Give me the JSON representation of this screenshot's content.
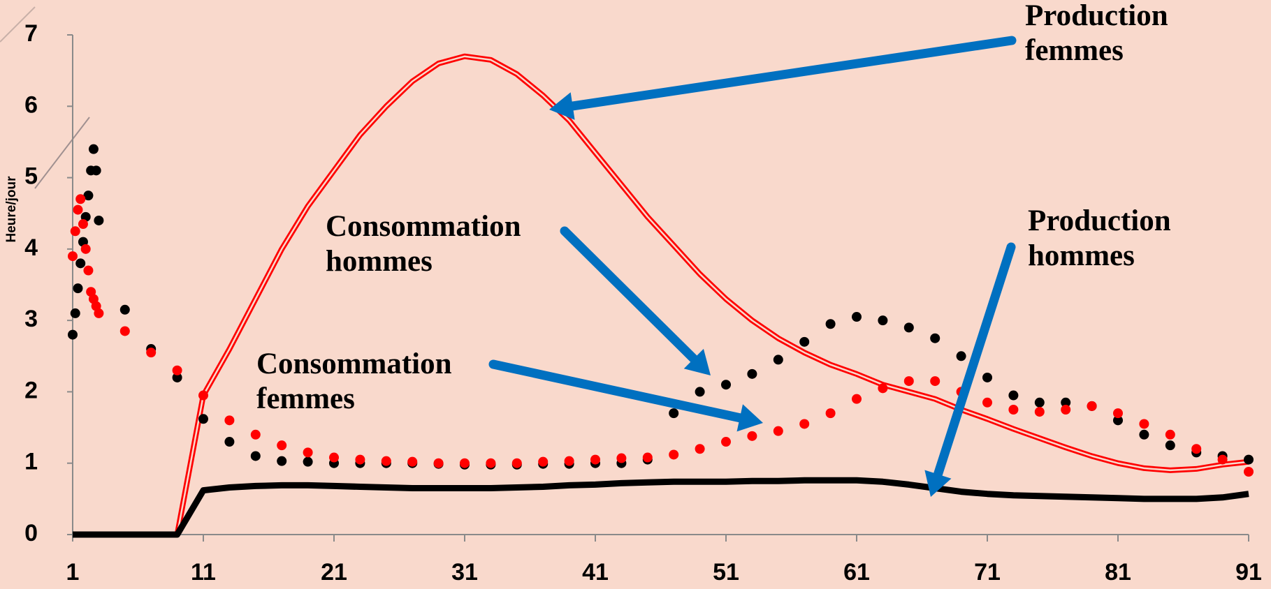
{
  "chart_data": {
    "type": "line",
    "y_label": "Heure/jour",
    "x": [
      1,
      1.2,
      1.4,
      1.6,
      1.8,
      2,
      2.2,
      2.4,
      2.6,
      2.8,
      3,
      5,
      7,
      9,
      11,
      13,
      15,
      17,
      19,
      21,
      23,
      25,
      27,
      29,
      31,
      33,
      35,
      37,
      39,
      41,
      43,
      45,
      47,
      49,
      51,
      53,
      55,
      57,
      59,
      61,
      63,
      65,
      67,
      69,
      71,
      73,
      75,
      77,
      79,
      81,
      83,
      85,
      87,
      89,
      91
    ],
    "xlim": [
      1,
      91
    ],
    "xticks": [
      1,
      11,
      21,
      31,
      41,
      51,
      61,
      71,
      81,
      91
    ],
    "ylim": [
      0,
      7
    ],
    "yticks": [
      0,
      1,
      2,
      3,
      4,
      5,
      6,
      7
    ],
    "grid": false,
    "series": [
      {
        "name": "Production femmes",
        "color": "#ff0000",
        "style": "double-line",
        "values": [
          0,
          0,
          0,
          0,
          0,
          0,
          0,
          0,
          0,
          0,
          0,
          0,
          0,
          0,
          1.95,
          2.6,
          3.3,
          4.0,
          4.6,
          5.1,
          5.6,
          6.0,
          6.35,
          6.6,
          6.7,
          6.65,
          6.45,
          6.15,
          5.8,
          5.35,
          4.9,
          4.45,
          4.05,
          3.65,
          3.3,
          3.0,
          2.75,
          2.55,
          2.38,
          2.25,
          2.1,
          2.0,
          1.9,
          1.75,
          1.62,
          1.48,
          1.35,
          1.22,
          1.1,
          1.0,
          0.93,
          0.9,
          0.92,
          0.98,
          1.02
        ]
      },
      {
        "name": "Production hommes",
        "color": "#000000",
        "style": "line",
        "values": [
          0,
          0,
          0,
          0,
          0,
          0,
          0,
          0,
          0,
          0,
          0,
          0,
          0,
          0,
          0.62,
          0.66,
          0.68,
          0.69,
          0.69,
          0.68,
          0.67,
          0.66,
          0.65,
          0.65,
          0.65,
          0.65,
          0.66,
          0.67,
          0.69,
          0.7,
          0.72,
          0.73,
          0.74,
          0.74,
          0.74,
          0.75,
          0.75,
          0.76,
          0.76,
          0.76,
          0.74,
          0.7,
          0.65,
          0.6,
          0.57,
          0.55,
          0.54,
          0.53,
          0.52,
          0.51,
          0.5,
          0.5,
          0.5,
          0.52,
          0.57
        ]
      },
      {
        "name": "Consommation hommes",
        "color": "#000000",
        "style": "dots",
        "values": [
          2.8,
          3.1,
          3.45,
          3.8,
          4.1,
          4.45,
          4.75,
          5.1,
          5.4,
          5.1,
          4.4,
          3.15,
          2.6,
          2.2,
          1.62,
          1.3,
          1.1,
          1.03,
          1.02,
          1.0,
          1.0,
          1.0,
          1.0,
          0.99,
          0.98,
          0.98,
          0.98,
          0.99,
          0.99,
          1.0,
          1.0,
          1.05,
          1.7,
          2.0,
          2.1,
          2.25,
          2.45,
          2.7,
          2.95,
          3.05,
          3.0,
          2.9,
          2.75,
          2.5,
          2.2,
          1.95,
          1.85,
          1.85,
          1.8,
          1.6,
          1.4,
          1.25,
          1.15,
          1.1,
          1.05
        ]
      },
      {
        "name": "Consommation femmes",
        "color": "#ff0000",
        "style": "dots",
        "values": [
          3.9,
          4.25,
          4.55,
          4.7,
          4.35,
          4.0,
          3.7,
          3.4,
          3.3,
          3.2,
          3.1,
          2.85,
          2.55,
          2.3,
          1.95,
          1.6,
          1.4,
          1.25,
          1.15,
          1.08,
          1.05,
          1.03,
          1.02,
          1.0,
          1.0,
          1.0,
          1.0,
          1.02,
          1.03,
          1.05,
          1.07,
          1.08,
          1.12,
          1.2,
          1.3,
          1.38,
          1.45,
          1.55,
          1.7,
          1.9,
          2.05,
          2.15,
          2.15,
          2.0,
          1.85,
          1.75,
          1.72,
          1.75,
          1.8,
          1.7,
          1.55,
          1.4,
          1.2,
          1.05,
          0.88
        ]
      }
    ]
  }
}
